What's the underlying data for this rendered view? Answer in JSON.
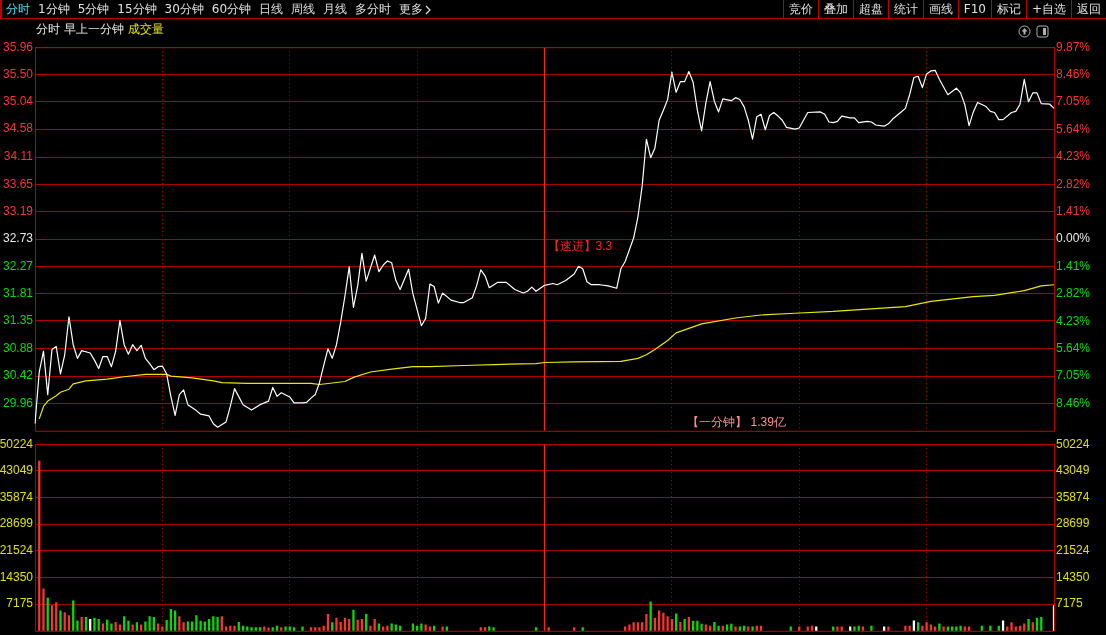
{
  "chart_data": [
    {
      "type": "other",
      "annotations": [
        "分时",
        "1分钟",
        "5分钟",
        "15分钟",
        "30分钟",
        "60分钟",
        "日线",
        "周线",
        "月线",
        "多分时",
        "更多"
      ]
    },
    {
      "type": "other",
      "annotations": [
        "竞价",
        "叠加",
        "超盘",
        "统计",
        "画线",
        "F10",
        "标记",
        "+自选",
        "返回"
      ]
    },
    {
      "type": "line",
      "title": "分时 早上一分钟",
      "subtitle": "成交量",
      "categories": [
        null,
        null,
        null,
        null,
        null,
        null,
        null,
        null,
        null,
        null,
        null,
        null,
        null,
        null,
        null,
        null,
        null,
        null,
        null,
        null,
        null,
        null,
        null,
        null,
        null,
        null,
        null,
        null,
        null,
        null,
        null,
        null,
        null,
        null,
        null,
        null,
        null,
        null,
        null,
        null,
        null,
        null,
        null,
        null,
        null,
        null,
        null,
        null,
        null,
        null,
        null,
        null,
        null,
        null,
        null,
        null,
        null,
        null,
        null,
        null,
        null,
        null,
        null,
        null,
        null,
        null,
        null,
        null,
        null,
        null,
        null,
        null,
        null,
        null,
        null,
        null,
        null,
        null,
        null,
        null,
        null,
        null,
        null,
        null,
        null,
        null,
        null,
        null,
        null,
        null,
        null,
        null,
        null,
        null,
        null,
        null,
        null,
        null,
        null,
        null,
        null,
        null,
        null,
        null,
        null,
        null,
        null,
        null,
        null,
        null,
        null,
        null,
        null,
        null,
        null,
        null,
        null,
        null,
        null,
        null,
        null,
        null,
        null,
        null,
        null,
        null,
        null,
        null,
        null,
        null,
        null,
        null,
        null,
        null,
        null,
        null,
        null,
        null,
        null,
        null,
        null,
        null,
        null,
        null,
        null,
        null,
        null,
        null,
        null,
        null,
        null,
        null,
        null,
        null,
        null,
        null,
        null,
        null,
        null,
        null,
        null,
        null,
        null,
        null,
        null,
        null,
        null,
        null,
        null,
        null,
        null,
        null,
        null,
        null,
        null,
        null,
        null,
        null,
        null,
        null,
        null,
        null,
        null,
        null,
        null,
        null,
        null,
        null,
        null,
        null,
        null,
        null,
        null,
        null,
        null,
        null,
        null,
        null,
        null,
        null,
        null,
        null,
        null,
        null,
        null,
        null,
        null,
        null,
        null,
        null,
        null,
        null,
        null,
        null,
        null,
        null,
        null,
        null,
        null,
        null,
        null,
        null,
        null,
        null,
        null,
        null,
        null,
        null,
        null,
        null,
        null,
        null,
        null,
        null,
        null,
        null,
        null,
        null,
        null,
        null,
        null
      ],
      "series": [
        {
          "color": "#ffffff",
          "values": [
            29.62,
            30.49,
            30.84,
            30.11,
            30.87,
            30.92,
            30.46,
            30.78,
            31.42,
            30.95,
            30.72,
            30.85,
            null,
            30.81,
            30.69,
            30.55,
            30.75,
            30.75,
            30.58,
            30.84,
            31.36,
            30.95,
            30.79,
            30.95,
            30.85,
            30.94,
            30.72,
            30.63,
            30.53,
            30.58,
            30.59,
            30.46,
            30.08,
            29.76,
            30.11,
            30.19,
            29.94,
            null,
            29.84,
            29.78,
            null,
            29.75,
            29.62,
            29.56,
            null,
            29.65,
            29.91,
            30.21,
            null,
            29.94,
            null,
            29.85,
            null,
            29.94,
            null,
            30.0,
            30.23,
            30.08,
            30.14,
            null,
            30.07,
            29.97,
            null,
            29.97,
            29.98,
            30.05,
            30.11,
            30.31,
            30.6,
            30.88,
            30.72,
            30.95,
            31.33,
            31.77,
            32.26,
            31.58,
            31.94,
            32.49,
            32.02,
            null,
            32.46,
            32.18,
            32.29,
            32.36,
            32.33,
            32.03,
            31.88,
            null,
            32.22,
            31.81,
            null,
            31.27,
            31.39,
            31.97,
            31.93,
            31.65,
            31.82,
            null,
            31.7,
            null,
            31.66,
            31.66,
            null,
            31.74,
            31.94,
            32.21,
            32.11,
            31.91,
            null,
            32.0,
            null,
            32.0,
            null,
            31.88,
            null,
            31.82,
            31.85,
            31.92,
            31.85,
            null,
            31.95,
            null,
            31.98,
            31.96,
            null,
            32.03,
            null,
            32.14,
            32.27,
            32.23,
            32.01,
            31.96,
            null,
            31.96,
            null,
            31.94,
            null,
            31.9,
            32.23,
            32.35,
            null,
            32.75,
            33.1,
            33.62,
            34.41,
            34.1,
            34.26,
            34.73,
            34.9,
            35.08,
            35.54,
            35.2,
            35.38,
            35.38,
            35.55,
            35.37,
            34.9,
            34.55,
            35.02,
            35.38,
            35.05,
            34.87,
            35.09,
            null,
            35.06,
            35.11,
            35.08,
            34.96,
            34.73,
            34.41,
            34.79,
            34.83,
            34.57,
            34.81,
            34.86,
            34.8,
            34.73,
            34.61,
            null,
            34.58,
            34.6,
            34.73,
            34.86,
            null,
            null,
            34.87,
            34.83,
            34.7,
            34.69,
            34.71,
            34.8,
            null,
            34.77,
            34.77,
            34.69,
            null,
            34.71,
            34.7,
            34.65,
            null,
            34.63,
            34.67,
            34.75,
            null,
            34.87,
            34.93,
            35.16,
            35.45,
            35.47,
            35.28,
            35.51,
            35.56,
            35.57,
            35.42,
            null,
            35.16,
            null,
            35.27,
            35.19,
            34.99,
            34.64,
            34.87,
            35.03,
            null,
            34.96,
            34.88,
            34.86,
            34.74,
            34.74,
            null,
            34.86,
            34.88,
            35.0,
            35.42,
            35.04,
            35.19,
            35.19,
            35.01,
            null,
            35.0,
            34.93
          ]
        },
        {
          "color": "#e8e800",
          "values": [
            null,
            29.7,
            29.91,
            30.0,
            null,
            30.09,
            30.15,
            null,
            30.2,
            30.29,
            null,
            null,
            30.34,
            null,
            null,
            null,
            null,
            30.37,
            null,
            null,
            null,
            30.41,
            null,
            null,
            null,
            null,
            30.45,
            null,
            null,
            null,
            null,
            30.45,
            30.42,
            null,
            null,
            null,
            null,
            30.39,
            null,
            null,
            null,
            null,
            30.34,
            null,
            30.31,
            null,
            null,
            null,
            null,
            null,
            30.3,
            null,
            null,
            null,
            null,
            null,
            null,
            null,
            null,
            null,
            null,
            null,
            null,
            null,
            null,
            30.3,
            null,
            30.28,
            null,
            null,
            null,
            null,
            null,
            30.33,
            null,
            30.4,
            null,
            null,
            null,
            30.49,
            null,
            null,
            null,
            null,
            30.54,
            null,
            null,
            null,
            null,
            30.58,
            null,
            null,
            null,
            30.58,
            null,
            null,
            null,
            null,
            null,
            null,
            null,
            30.6,
            null,
            null,
            null,
            null,
            null,
            null,
            null,
            null,
            30.62,
            null,
            null,
            null,
            null,
            null,
            null,
            null,
            30.63,
            null,
            30.65,
            null,
            null,
            null,
            null,
            null,
            null,
            30.66,
            null,
            null,
            null,
            null,
            null,
            null,
            null,
            null,
            null,
            null,
            30.67,
            null,
            null,
            null,
            30.72,
            null,
            30.78,
            null,
            30.87,
            null,
            null,
            31.02,
            null,
            31.15,
            null,
            null,
            null,
            null,
            null,
            31.3,
            null,
            null,
            null,
            null,
            null,
            null,
            null,
            31.4,
            null,
            null,
            null,
            null,
            null,
            31.45,
            null,
            null,
            null,
            null,
            null,
            null,
            null,
            31.48,
            null,
            null,
            null,
            null,
            null,
            null,
            null,
            null,
            31.51,
            null,
            null,
            null,
            null,
            null,
            null,
            null,
            31.55,
            null,
            null,
            null,
            null,
            null,
            null,
            null,
            null,
            31.59,
            null,
            null,
            null,
            null,
            null,
            31.68,
            null,
            null,
            null,
            null,
            null,
            null,
            null,
            null,
            null,
            31.76,
            null,
            null,
            null,
            null,
            31.78,
            null,
            null,
            null,
            null,
            null,
            null,
            31.86,
            null,
            null,
            null,
            31.94,
            null,
            null,
            31.96
          ]
        }
      ],
      "ylim": [
        29.5,
        35.96
      ],
      "yticks": [
        35.96,
        {
          "value": 35.5,
          "label": "35.50"
        },
        35.04,
        34.58,
        34.11,
        33.65,
        33.19,
        32.73,
        32.27,
        31.81,
        31.35,
        30.88,
        30.42,
        29.96
      ],
      "y2lim": [
        -9.87,
        9.87
      ],
      "y2ticks": [
        {
          "value": 9.87,
          "label": "9.87%"
        },
        {
          "value": 8.46,
          "label": "8.46%"
        },
        {
          "value": 7.05,
          "label": "7.05%"
        },
        {
          "value": 5.64,
          "label": "5.64%"
        },
        {
          "value": 4.23,
          "label": "4.23%"
        },
        {
          "value": 2.82,
          "label": "2.82%"
        },
        {
          "value": 1.41,
          "label": "1.41%"
        },
        {
          "value": 0,
          "label": "0.00%"
        },
        {
          "value": -1.41,
          "label": "1.41%"
        },
        {
          "value": -2.82,
          "label": "2.82%"
        },
        {
          "value": -4.23,
          "label": "4.23%"
        },
        {
          "value": -5.64,
          "label": "5.64%"
        },
        {
          "value": -7.05,
          "label": "7.05%"
        },
        {
          "value": -8.46,
          "label": "8.46%"
        }
      ],
      "annotations": [
        "【速进】3.3",
        "【一分钟】 1.39亿"
      ],
      "grid": true,
      "tick_labels": "y",
      "marker": "none",
      "line_style": "solid"
    },
    {
      "type": "bar",
      "categories": [
        null,
        null,
        null,
        null,
        null,
        null,
        null,
        null,
        null,
        null,
        null,
        null,
        null,
        null,
        null,
        null,
        null,
        null,
        null,
        null,
        null,
        null,
        null,
        null,
        null,
        null,
        null,
        null,
        null,
        null,
        null,
        null,
        null,
        null,
        null,
        null,
        null,
        null,
        null,
        null,
        null,
        null,
        null,
        null,
        null,
        null,
        null,
        null,
        null,
        null,
        null,
        null,
        null,
        null,
        null,
        null,
        null,
        null,
        null,
        null,
        null,
        null,
        null,
        null,
        null,
        null,
        null,
        null,
        null,
        null,
        null,
        null,
        null,
        null,
        null,
        null,
        null,
        null,
        null,
        null,
        null,
        null,
        null,
        null,
        null,
        null,
        null,
        null,
        null,
        null,
        null,
        null,
        null,
        null,
        null,
        null,
        null,
        null,
        null,
        null,
        null,
        null,
        null,
        null,
        null,
        null,
        null,
        null,
        null,
        null,
        null,
        null,
        null,
        null,
        null,
        null,
        null,
        null,
        null,
        null,
        null,
        null,
        null,
        null,
        null,
        null,
        null,
        null,
        null,
        null,
        null,
        null,
        null,
        null,
        null,
        null,
        null,
        null,
        null,
        null,
        null,
        null,
        null,
        null,
        null,
        null,
        null,
        null,
        null,
        null,
        null,
        null,
        null,
        null,
        null,
        null,
        null,
        null,
        null,
        null,
        null,
        null,
        null,
        null,
        null,
        null,
        null,
        null,
        null,
        null,
        null,
        null,
        null,
        null,
        null,
        null,
        null,
        null,
        null,
        null,
        null,
        null,
        null,
        null,
        null,
        null,
        null,
        null,
        null,
        null,
        null,
        null,
        null,
        null,
        null,
        null,
        null,
        null,
        null,
        null,
        null,
        null,
        null,
        null,
        null,
        null,
        null,
        null,
        null,
        null,
        null,
        null,
        null,
        null,
        null,
        null,
        null,
        null,
        null,
        null,
        null,
        null,
        null,
        null,
        null,
        null,
        null,
        null,
        null,
        null,
        null,
        null,
        null,
        null,
        null,
        null,
        null,
        null,
        null,
        null,
        null
      ],
      "values": [
        null,
        45700,
        11300,
        8800,
        6800,
        7600,
        5400,
        4900,
        4100,
        8100,
        2700,
        3600,
        3600,
        3100,
        3400,
        3100,
        1900,
        2900,
        1900,
        2300,
        1600,
        3800,
        2600,
        1600,
        2200,
        1600,
        2400,
        3800,
        3600,
        1900,
        1100,
        2800,
        5800,
        5400,
        3800,
        2200,
        2400,
        2400,
        4100,
        2600,
        2400,
        3100,
        3800,
        3600,
        3800,
        1100,
        1300,
        1300,
        2300,
        1300,
        1100,
        900,
        900,
        900,
        1100,
        800,
        900,
        1300,
        900,
        1100,
        1100,
        900,
        null,
        1100,
        null,
        900,
        900,
        900,
        1300,
        4400,
        2200,
        3400,
        2300,
        3400,
        3100,
        5600,
        2900,
        3100,
        4400,
        1300,
        3100,
        1900,
        1100,
        1300,
        1900,
        1600,
        1300,
        null,
        null,
        1900,
        1300,
        1900,
        1600,
        1100,
        1300,
        null,
        1100,
        1100,
        null,
        null,
        null,
        null,
        null,
        null,
        null,
        900,
        900,
        1100,
        900,
        null,
        null,
        null,
        null,
        null,
        null,
        null,
        null,
        null,
        900,
        null,
        null,
        900,
        null,
        null,
        null,
        null,
        null,
        900,
        null,
        900,
        null,
        null,
        null,
        null,
        null,
        null,
        null,
        null,
        null,
        1100,
        1600,
        2200,
        2200,
        2200,
        4400,
        7800,
        3400,
        5400,
        4800,
        3800,
        3100,
        4600,
        2300,
        3100,
        3600,
        2600,
        2600,
        1800,
        1600,
        1300,
        2300,
        1300,
        1300,
        1600,
        1800,
        1100,
        1100,
        1300,
        1100,
        1100,
        1300,
        1300,
        null,
        null,
        null,
        null,
        null,
        null,
        1100,
        null,
        1100,
        null,
        1100,
        1300,
        1100,
        null,
        null,
        null,
        1100,
        1100,
        1100,
        null,
        1100,
        1100,
        1300,
        1100,
        null,
        1300,
        null,
        null,
        1100,
        1100,
        null,
        null,
        null,
        1300,
        1300,
        2700,
        2200,
        1300,
        2200,
        1600,
        1100,
        1900,
        1100,
        1100,
        1100,
        1100,
        1300,
        1100,
        1100,
        null,
        null,
        1300,
        null,
        1300,
        null,
        1300,
        2700,
        1100,
        2200,
        1100,
        1300,
        1900,
        3100,
        2200,
        3400,
        3600,
        null,
        null,
        6800
      ],
      "colors": [
        null,
        "#ff3232",
        "#ff3232",
        "#00e000",
        "#ff3232",
        "#ff3232",
        "#00e000",
        "#ff3232",
        "#ff3232",
        "#00e000",
        "#00e000",
        "#ff3232",
        "#00e000",
        "#ffffff",
        "#00e000",
        "#00e000",
        "#ff3232",
        "#00e000",
        "#00e000",
        "#ff3232",
        "#ff3232",
        "#00e000",
        "#00e000",
        "#ff3232",
        "#00e000",
        "#ff3232",
        "#00e000",
        "#00e000",
        "#00e000",
        "#ff3232",
        "#ff3232",
        "#00e000",
        "#00e000",
        "#00e000",
        "#ff3232",
        "#ff3232",
        "#00e000",
        "#00e000",
        "#00e000",
        "#00e000",
        "#00e000",
        "#00e000",
        "#00e000",
        "#00e000",
        "#ff3232",
        "#ff3232",
        "#ff3232",
        "#ff3232",
        "#00e000",
        "#00e000",
        "#00e000",
        "#00e000",
        "#00e000",
        "#00e000",
        "#ff3232",
        "#ff3232",
        "#00e000",
        "#00e000",
        "#ff3232",
        "#00e000",
        "#00e000",
        "#00e000",
        null,
        "#00e000",
        null,
        "#ff3232",
        "#ff3232",
        "#ff3232",
        "#ff3232",
        "#ff3232",
        "#00e000",
        "#ff3232",
        "#ff3232",
        "#ff3232",
        "#ff3232",
        "#00e000",
        "#ff3232",
        "#ff3232",
        "#00e000",
        "#ff3232",
        "#ff3232",
        "#00e000",
        "#ff3232",
        "#ff3232",
        "#00e000",
        "#00e000",
        "#00e000",
        null,
        null,
        "#00e000",
        "#00e000",
        "#00e000",
        "#ff3232",
        "#ff3232",
        "#00e000",
        null,
        "#ff3232",
        "#00e000",
        null,
        null,
        null,
        null,
        null,
        null,
        null,
        "#ff3232",
        "#ff3232",
        "#00e000",
        "#00e000",
        null,
        null,
        null,
        null,
        null,
        null,
        null,
        null,
        null,
        "#00e000",
        null,
        null,
        "#ff3232",
        null,
        null,
        null,
        null,
        null,
        "#ff3232",
        null,
        "#00e000",
        null,
        null,
        null,
        null,
        null,
        null,
        null,
        null,
        null,
        "#ff3232",
        "#ff3232",
        "#ff3232",
        "#ff3232",
        "#ff3232",
        "#ff3232",
        "#00e000",
        "#ff3232",
        "#ff3232",
        "#ff3232",
        "#ff3232",
        "#ff3232",
        "#00e000",
        "#ff3232",
        "#00e000",
        "#ff3232",
        "#00e000",
        "#00e000",
        "#00e000",
        "#ff3232",
        "#ff3232",
        "#00e000",
        "#00e000",
        "#ff3232",
        "#00e000",
        "#00e000",
        "#ff3232",
        "#00e000",
        "#00e000",
        "#ff3232",
        "#00e000",
        "#ff3232",
        "#ff3232",
        null,
        null,
        null,
        null,
        null,
        null,
        "#00e000",
        null,
        "#ff3232",
        null,
        "#ff3232",
        "#ff3232",
        "#ffffff",
        null,
        null,
        null,
        "#00e000",
        "#ff3232",
        "#ff3232",
        null,
        "#ffffff",
        "#00e000",
        "#00e000",
        "#ff3232",
        null,
        "#00e000",
        null,
        null,
        "#ffffff",
        "#ff3232",
        null,
        null,
        null,
        "#ff3232",
        "#ff3232",
        "#ffffff",
        "#00e000",
        "#ff3232",
        "#ff3232",
        "#ff3232",
        "#ff3232",
        "#00e000",
        "#ff3232",
        "#00e000",
        "#00e000",
        "#00e000",
        "#00e000",
        "#ff3232",
        "#ff3232",
        null,
        null,
        "#00e000",
        null,
        "#00e000",
        null,
        "#00e000",
        "#ffffff",
        "#ff3232",
        "#ff3232",
        "#ff3232",
        "#ff3232",
        "#ff3232",
        "#00e000",
        "#ff3232",
        "#00e000",
        "#00e000",
        null,
        null,
        "#ffffff"
      ],
      "ylim": [
        0,
        50224
      ],
      "yticks": [
        7175,
        14350,
        21524,
        28699,
        35874,
        43049,
        50224
      ],
      "y2lim": [
        0,
        50224
      ],
      "y2ticks": [
        7175,
        14350,
        21524,
        28699,
        35874,
        43049,
        50224
      ],
      "grid": true,
      "tick_labels": "y"
    }
  ]
}
